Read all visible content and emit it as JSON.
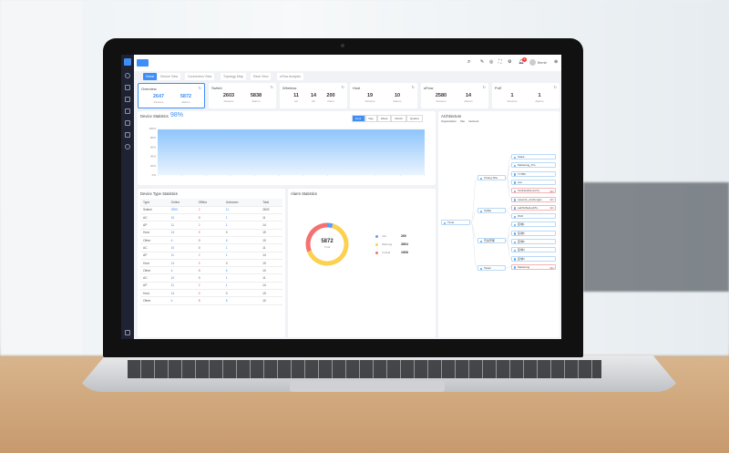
{
  "app": {
    "topbar": {
      "user": "Bernie",
      "notification_count": "8"
    },
    "colors": {
      "accent": "#3d8ef8",
      "sidebar": "#1e2233",
      "offline": "#f26262",
      "info": "#5b9cf6",
      "warning": "#fcd14f",
      "critical": "#f57070"
    }
  },
  "tabs": [
    "Home",
    "Device View",
    "Connection View",
    "Topology Map",
    "Rack View",
    "sFlow Analysis"
  ],
  "cards": [
    {
      "title": "Overview",
      "items": [
        {
          "value": "2647",
          "label": "Devices"
        },
        {
          "value": "5872",
          "label": "Alarms"
        }
      ]
    },
    {
      "title": "Switch",
      "items": [
        {
          "value": "2603",
          "label": "Devices"
        },
        {
          "value": "5838",
          "label": "Alarms"
        }
      ]
    },
    {
      "title": "Wireless",
      "items": [
        {
          "value": "11",
          "label": "AC"
        },
        {
          "value": "14",
          "label": "AP"
        },
        {
          "value": "200",
          "label": "Client"
        }
      ]
    },
    {
      "title": "Host",
      "items": [
        {
          "value": "19",
          "label": "Devices"
        },
        {
          "value": "10",
          "label": "Alarms"
        }
      ]
    },
    {
      "title": "sFlow",
      "items": [
        {
          "value": "2580",
          "label": "Devices"
        },
        {
          "value": "14",
          "label": "Alarms"
        }
      ]
    },
    {
      "title": "PoE",
      "items": [
        {
          "value": "1",
          "label": "Devices"
        },
        {
          "value": "1",
          "label": "Alarms"
        }
      ]
    }
  ],
  "device_stats": {
    "title": "Device Statistics",
    "percent": "98%",
    "ranges": [
      "Hour",
      "Day",
      "Week",
      "Month",
      "Quarter"
    ],
    "active_range": "Hour"
  },
  "chart_data": {
    "type": "area",
    "ylim": [
      0,
      100
    ],
    "yticks": [
      "100%",
      "80%",
      "60%",
      "40%",
      "20%",
      "0%"
    ],
    "values": [
      97,
      97,
      97,
      97,
      97,
      97,
      97,
      97,
      97,
      97,
      97,
      97
    ],
    "grid": true,
    "color": "#8ec5fb"
  },
  "device_type": {
    "title": "Device Type Statistics",
    "headers": [
      "Type",
      "Online",
      "Offline",
      "Unknown",
      "Total"
    ],
    "rows": [
      [
        "Switch",
        "2590",
        "2",
        "11",
        "2603"
      ],
      [
        "AC",
        "10",
        "0",
        "1",
        "11"
      ],
      [
        "AP",
        "11",
        "2",
        "1",
        "14"
      ],
      [
        "Host",
        "14",
        "5",
        "0",
        "19"
      ],
      [
        "Other",
        "4",
        "0",
        "6",
        "10"
      ],
      [
        "AC",
        "10",
        "0",
        "1",
        "11"
      ],
      [
        "AP",
        "11",
        "2",
        "1",
        "14"
      ],
      [
        "Host",
        "14",
        "5",
        "0",
        "19"
      ],
      [
        "Other",
        "4",
        "0",
        "6",
        "10"
      ],
      [
        "AC",
        "10",
        "0",
        "1",
        "11"
      ],
      [
        "AP",
        "11",
        "2",
        "1",
        "14"
      ],
      [
        "Host",
        "14",
        "5",
        "0",
        "19"
      ],
      [
        "Other",
        "4",
        "0",
        "6",
        "10"
      ]
    ]
  },
  "alarm": {
    "title": "Alarm Statistics",
    "total": "5872",
    "total_label": "Total",
    "items": [
      {
        "label": "Info",
        "value": "260"
      },
      {
        "label": "Warning",
        "value": "3804"
      },
      {
        "label": "Critical",
        "value": "1808"
      }
    ]
  },
  "architecture": {
    "title": "Architecture",
    "legend": [
      "Organization",
      "Site",
      "Network"
    ],
    "root": "Timel",
    "sites": [
      "Chang Sha",
      "TaiBei",
      "巴塞罗那",
      "Taipei"
    ],
    "networks": [
      "Stack",
      "Marketing_Pro",
      "TY350",
      "test",
      "TestNewDeviceTy...",
      "network_xinchengd...",
      "LabTelNetLabTo...",
      "IPv6",
      "区域1",
      "区域5",
      "区域6",
      "区域4",
      "区域3",
      "Marketing"
    ]
  }
}
